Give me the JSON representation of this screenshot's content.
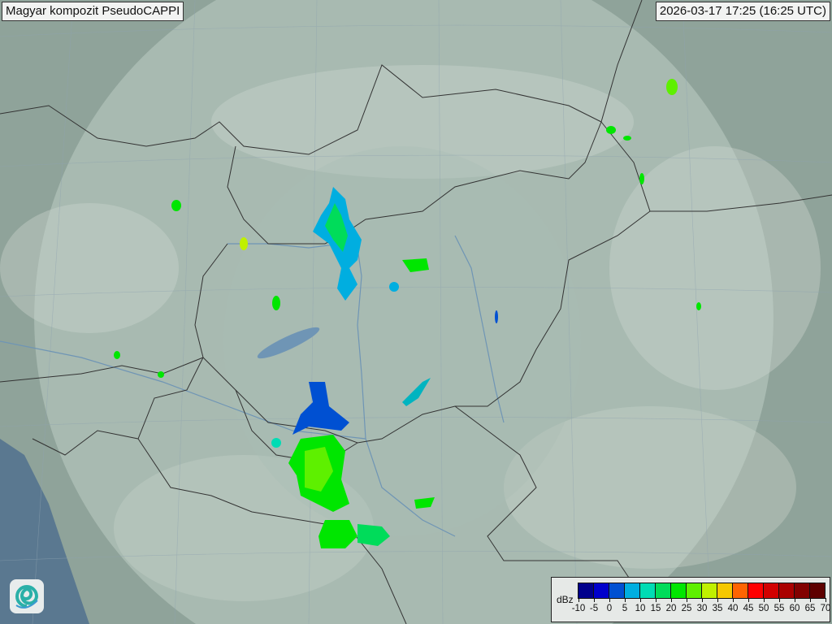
{
  "header": {
    "title": "Magyar kompozit  PseudoCAPPI",
    "timestamp": "2026-03-17 17:25 (16:25 UTC)"
  },
  "legend": {
    "unit": "dBz",
    "ticks": [
      "-10",
      "-5",
      "0",
      "5",
      "10",
      "15",
      "20",
      "25",
      "30",
      "35",
      "40",
      "45",
      "50",
      "55",
      "60",
      "65",
      "70"
    ],
    "colors": [
      "#00008c",
      "#0000cc",
      "#0050d2",
      "#00aee0",
      "#00dcb4",
      "#00dc5a",
      "#00e600",
      "#5ef000",
      "#c0f000",
      "#f5c800",
      "#ff6400",
      "#ff0000",
      "#d20000",
      "#aa0000",
      "#820000",
      "#5e0000"
    ]
  },
  "map": {
    "land_color": "#8fa39a",
    "radar_coverage_color": "#b4c4bc",
    "sea_color": "#5a7890",
    "border_color": "#333333",
    "river_color": "#6f95b5"
  },
  "logo": {
    "icon": "swirl-logo-icon"
  }
}
